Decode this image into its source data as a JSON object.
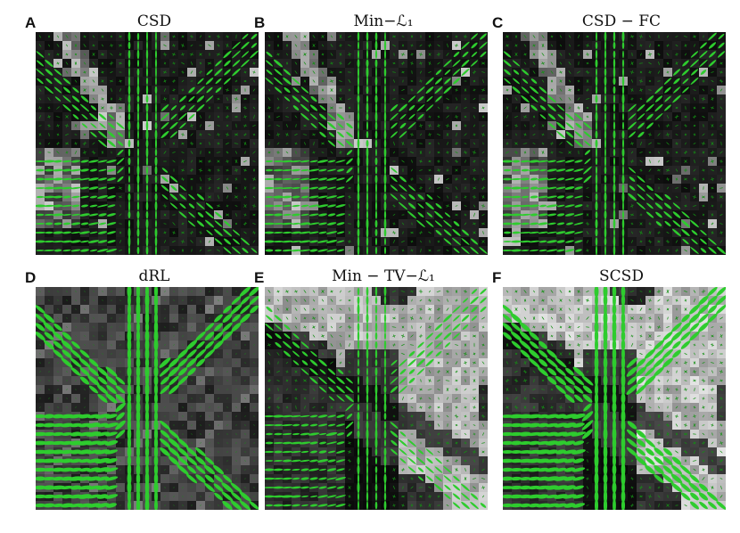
{
  "panels": [
    {
      "letter": "A",
      "title": "CSD",
      "variant": "csd"
    },
    {
      "letter": "B",
      "title": "Min−ℒ₁",
      "variant": "minl1"
    },
    {
      "letter": "C",
      "title": "CSD − FC",
      "variant": "csdfc"
    },
    {
      "letter": "D",
      "title": "dRL",
      "variant": "drl"
    },
    {
      "letter": "E",
      "title": "Min − TV−ℒ₁",
      "variant": "mintv"
    },
    {
      "letter": "F",
      "title": "SCSD",
      "variant": "scsd"
    }
  ],
  "colors": {
    "glyph": "#2ecc2e",
    "glyph_dark": "#149014",
    "background": "#000000"
  }
}
